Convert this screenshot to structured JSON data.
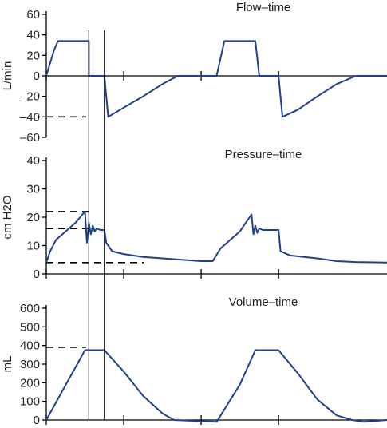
{
  "chart_data": [
    {
      "type": "line",
      "title": "Flow–time",
      "ylabel": "L/min",
      "ylim": [
        -60,
        60
      ],
      "yticks": [
        "60",
        "40",
        "20",
        "0",
        "–20",
        "–40",
        "–60"
      ],
      "series": [
        {
          "x": [
            0,
            0.2,
            0.3,
            1.0,
            1.1,
            1.1,
            1.5,
            1.5,
            1.6,
            2.0,
            2.5,
            3.0,
            3.4,
            4.4,
            4.6,
            5.2,
            5.4,
            5.5,
            6.0,
            6.0,
            6.1,
            6.5,
            7.0,
            7.5,
            8.0,
            8.5,
            8.8
          ],
          "values": [
            0,
            25,
            34,
            34,
            34,
            0,
            0,
            0,
            -40,
            -31,
            -20,
            -8,
            0,
            0,
            34,
            34,
            34,
            0,
            0,
            0,
            -40,
            -33,
            -20,
            -8,
            0,
            0,
            0
          ]
        }
      ],
      "reference_lines": [
        -40
      ]
    },
    {
      "type": "line",
      "title": "Pressure–time",
      "ylabel": "cm H2O",
      "ylim": [
        0,
        40
      ],
      "yticks": [
        "40",
        "30",
        "20",
        "10",
        "0"
      ],
      "series": [
        {
          "x": [
            0,
            0.1,
            0.25,
            0.5,
            0.75,
            1.0,
            1.05,
            1.1,
            1.15,
            1.2,
            1.25,
            1.3,
            1.4,
            1.5,
            1.55,
            1.7,
            2.0,
            2.5,
            3.0,
            3.5,
            4.0,
            4.3,
            4.5,
            5.0,
            5.3,
            5.35,
            5.4,
            5.45,
            5.5,
            5.6,
            5.8,
            6.0,
            6.05,
            6.3,
            7.0,
            7.5,
            8.0,
            8.8
          ],
          "values": [
            4,
            8,
            12,
            15,
            18,
            22,
            11,
            18,
            14,
            17,
            15,
            16,
            15.5,
            15.5,
            11,
            8,
            7,
            6,
            5.5,
            5,
            4.5,
            4.5,
            9,
            15,
            21,
            14,
            17,
            14.5,
            16,
            15.5,
            15.5,
            15.5,
            8,
            6.5,
            5.5,
            4.5,
            4.2,
            4
          ]
        }
      ],
      "reference_lines": [
        22,
        16,
        4
      ]
    },
    {
      "type": "line",
      "title": "Volume–time",
      "ylabel": "mL",
      "ylim": [
        0,
        600
      ],
      "yticks": [
        "600",
        "500",
        "400",
        "300",
        "200",
        "100",
        "0"
      ],
      "series": [
        {
          "x": [
            0,
            1.0,
            1.5,
            2.0,
            2.5,
            3.0,
            3.3,
            4.4,
            5.0,
            5.4,
            6.0,
            6.5,
            7.0,
            7.5,
            7.9,
            8.2,
            8.8
          ],
          "values": [
            0,
            375,
            375,
            260,
            130,
            35,
            0,
            -10,
            190,
            375,
            375,
            250,
            110,
            25,
            0,
            -10,
            0
          ]
        }
      ],
      "reference_lines": [
        390
      ]
    }
  ]
}
